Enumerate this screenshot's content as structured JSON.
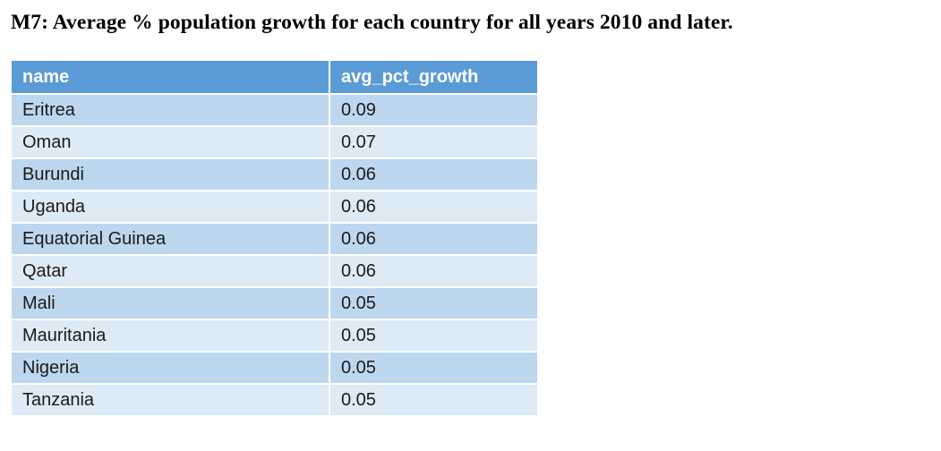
{
  "title": "M7: Average % population growth for each country for all years 2010 and later.",
  "table": {
    "headers": [
      "name",
      "avg_pct_growth"
    ],
    "rows": [
      [
        "Eritrea",
        "0.09"
      ],
      [
        "Oman",
        "0.07"
      ],
      [
        "Burundi",
        "0.06"
      ],
      [
        "Uganda",
        "0.06"
      ],
      [
        "Equatorial Guinea",
        "0.06"
      ],
      [
        "Qatar",
        "0.06"
      ],
      [
        "Mali",
        "0.05"
      ],
      [
        "Mauritania",
        "0.05"
      ],
      [
        "Nigeria",
        "0.05"
      ],
      [
        "Tanzania",
        "0.05"
      ]
    ]
  },
  "colors": {
    "header_bg": "#5b9bd5",
    "row_odd_bg": "#bdd7ee",
    "row_even_bg": "#ddebf7"
  }
}
